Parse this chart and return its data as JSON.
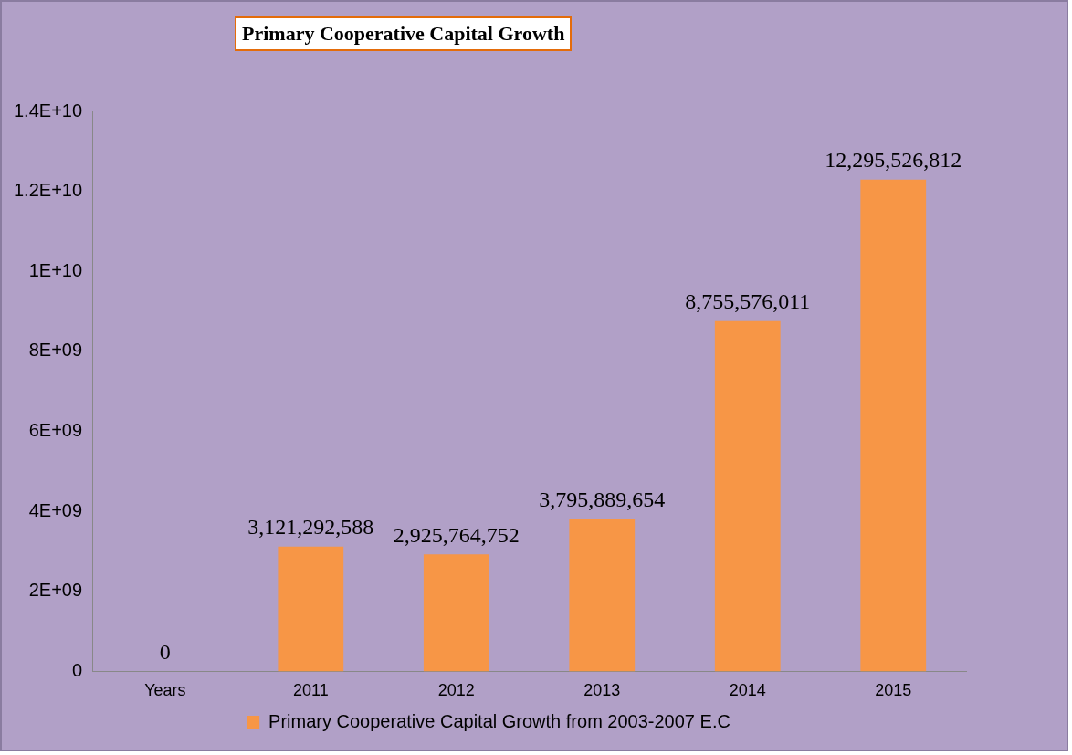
{
  "chart_data": {
    "type": "bar",
    "title": "Primary Cooperative Capital Growth",
    "categories": [
      "Years",
      "2011",
      "2012",
      "2013",
      "2014",
      "2015"
    ],
    "series": [
      {
        "name": "Primary Cooperative Capital Growth from 2003-2007 E.C",
        "color": "#f79646",
        "values": [
          0,
          3121292588,
          2925764752,
          3795889654,
          8755576011,
          12295526812
        ]
      }
    ],
    "value_labels": [
      "0",
      "3,121,292,588",
      "2,925,764,752",
      "3,795,889,654",
      "8,755,576,011",
      "12,295,526,812"
    ],
    "ylim": [
      0,
      14000000000
    ],
    "yticks": [
      0,
      {
        "value": 2000000000,
        "label": "2E+09"
      },
      {
        "value": 4000000000,
        "label": "4E+09"
      },
      {
        "value": 6000000000,
        "label": "6E+09"
      },
      {
        "value": 8000000000,
        "label": "8E+09"
      },
      {
        "value": 10000000000,
        "label": "1E+10"
      },
      {
        "value": 12000000000,
        "label": "1.2E+10"
      },
      {
        "value": 14000000000,
        "label": "1.4E+10"
      }
    ],
    "grid": false,
    "legend": "bottom"
  }
}
